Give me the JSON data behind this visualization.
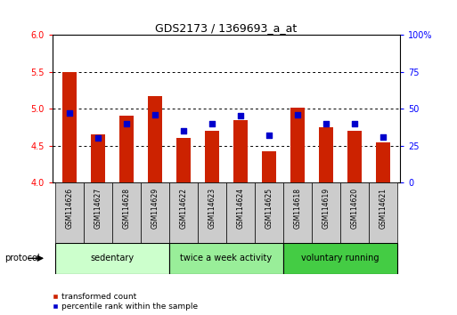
{
  "title": "GDS2173 / 1369693_a_at",
  "samples": [
    "GSM114626",
    "GSM114627",
    "GSM114628",
    "GSM114629",
    "GSM114622",
    "GSM114623",
    "GSM114624",
    "GSM114625",
    "GSM114618",
    "GSM114619",
    "GSM114620",
    "GSM114621"
  ],
  "red_values": [
    5.5,
    4.65,
    4.9,
    5.17,
    4.6,
    4.7,
    4.85,
    4.42,
    5.01,
    4.75,
    4.7,
    4.55
  ],
  "blue_values": [
    47,
    30,
    40,
    46,
    35,
    40,
    45,
    32,
    46,
    40,
    40,
    31
  ],
  "ylim_left": [
    4,
    6
  ],
  "ylim_right": [
    0,
    100
  ],
  "yticks_left": [
    4,
    4.5,
    5,
    5.5,
    6
  ],
  "yticks_right": [
    0,
    25,
    50,
    75,
    100
  ],
  "ytick_labels_right": [
    "0",
    "25",
    "50",
    "75",
    "100%"
  ],
  "bar_color": "#cc2200",
  "square_color": "#0000cc",
  "base_value": 4,
  "groups": [
    {
      "label": "sedentary",
      "indices": [
        0,
        1,
        2,
        3
      ],
      "color": "#ccffcc"
    },
    {
      "label": "twice a week activity",
      "indices": [
        4,
        5,
        6,
        7
      ],
      "color": "#99ee99"
    },
    {
      "label": "voluntary running",
      "indices": [
        8,
        9,
        10,
        11
      ],
      "color": "#44cc44"
    }
  ],
  "protocol_label": "protocol",
  "legend_red": "transformed count",
  "legend_blue": "percentile rank within the sample",
  "bg_color": "#ffffff",
  "sample_bg": "#cccccc",
  "bar_width": 0.5,
  "square_size": 20
}
